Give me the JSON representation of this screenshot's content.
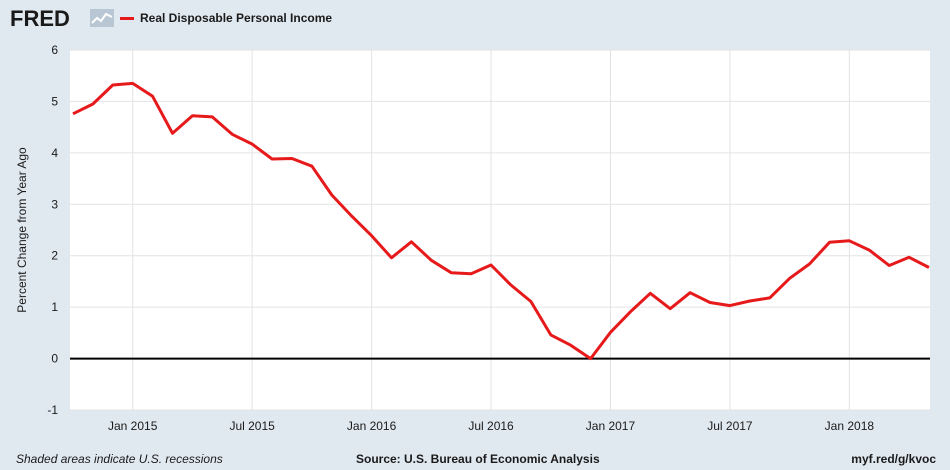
{
  "header": {
    "logo_text": "FRED",
    "logo_icon": "sparkline-icon",
    "legend_label": "Real Disposable Personal Income"
  },
  "colors": {
    "series": "#e6191b",
    "background": "#e1e9f0",
    "plot_background": "#ffffff",
    "grid": "#e3e3e3",
    "zero_line": "#000000"
  },
  "footer": {
    "left": "Shaded areas indicate U.S. recessions",
    "center": "Source: U.S. Bureau of Economic Analysis",
    "right": "myf.red/g/kvoc"
  },
  "chart_data": {
    "type": "line",
    "title": "",
    "xlabel": "",
    "ylabel": "Percent Change from Year Ago",
    "ylim": [
      -1,
      6
    ],
    "yticks": [
      -1,
      0,
      1,
      2,
      3,
      4,
      5,
      6
    ],
    "grid": true,
    "legend": "top-left",
    "xticks": [
      {
        "label": "Jan 2015",
        "x": "2015-01"
      },
      {
        "label": "Jul 2015",
        "x": "2015-07"
      },
      {
        "label": "Jan 2016",
        "x": "2016-01"
      },
      {
        "label": "Jul 2016",
        "x": "2016-07"
      },
      {
        "label": "Jan 2017",
        "x": "2017-01"
      },
      {
        "label": "Jul 2017",
        "x": "2017-07"
      },
      {
        "label": "Jan 2018",
        "x": "2018-01"
      }
    ],
    "series": [
      {
        "name": "Real Disposable Personal Income",
        "x": [
          "2014-10",
          "2014-11",
          "2014-12",
          "2015-01",
          "2015-02",
          "2015-03",
          "2015-04",
          "2015-05",
          "2015-06",
          "2015-07",
          "2015-08",
          "2015-09",
          "2015-10",
          "2015-11",
          "2015-12",
          "2016-01",
          "2016-02",
          "2016-03",
          "2016-04",
          "2016-05",
          "2016-06",
          "2016-07",
          "2016-08",
          "2016-09",
          "2016-10",
          "2016-11",
          "2016-12",
          "2017-01",
          "2017-02",
          "2017-03",
          "2017-04",
          "2017-05",
          "2017-06",
          "2017-07",
          "2017-08",
          "2017-09",
          "2017-10",
          "2017-11",
          "2017-12",
          "2018-01",
          "2018-02",
          "2018-03",
          "2018-04",
          "2018-05"
        ],
        "values": [
          4.76,
          4.95,
          5.32,
          5.35,
          5.1,
          4.38,
          4.72,
          4.7,
          4.36,
          4.17,
          3.88,
          3.89,
          3.74,
          3.18,
          2.77,
          2.39,
          1.96,
          2.27,
          1.91,
          1.67,
          1.65,
          1.82,
          1.43,
          1.11,
          0.46,
          0.26,
          0.0,
          0.51,
          0.91,
          1.27,
          0.97,
          1.28,
          1.09,
          1.03,
          1.12,
          1.18,
          1.56,
          1.84,
          2.26,
          2.29,
          2.11,
          1.81,
          1.97,
          1.77
        ]
      }
    ]
  }
}
